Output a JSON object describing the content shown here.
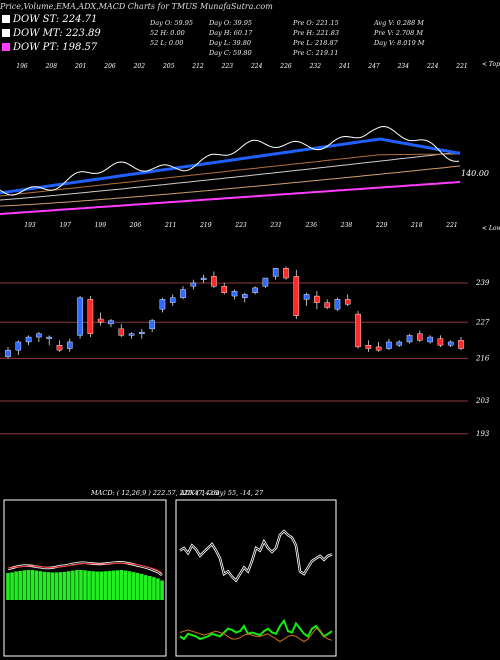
{
  "caption": "Price,Volume,EMA,ADX,MACD Charts for TMUS MunafaSutra.com",
  "legend": [
    {
      "label": "DOW ST: 224.71",
      "color": "#ffffff"
    },
    {
      "label": "DOW MT: 223.89",
      "color": "#ffffff"
    },
    {
      "label": "DOW PT: 198.57",
      "color": "#ff3cff"
    }
  ],
  "stats": {
    "col1": [
      "Day O: 59.95",
      "52 H: 0.00",
      "52 L: 0.00"
    ],
    "col2": [
      "Day O: 39.95",
      "Day H: 60.17",
      "Day L: 39.80",
      "Day C: 59.80"
    ],
    "col3": [
      "Pre O: 221.15",
      "Pre H: 221.83",
      "Pre L: 218.87",
      "Pre C: 219.11"
    ],
    "col4": [
      "Avg V: 0.288 M",
      "Pre V: 2.708 M",
      "Day V: 8.019 M"
    ]
  },
  "top_labels": [
    "196",
    "208",
    "201",
    "206",
    "202",
    "205",
    "212",
    "223",
    "224",
    "226",
    "232",
    "241",
    "247",
    "234",
    "224",
    "221"
  ],
  "mid_labels": [
    "193",
    "197",
    "199",
    "206",
    "211",
    "219",
    "223",
    "231",
    "236",
    "238",
    "229",
    "218",
    "221"
  ],
  "upper_right_label": "< Tops",
  "lower_right_label": "< Lows",
  "ema_label": "140.00",
  "macd_header": "MACD: ( 12,26,9 ) 222.57, 225.47, -2.9",
  "adx_header": "ADX ( 14 day) 55, -14, 27",
  "chart_data": {
    "type": "candlestick",
    "y_axis_ticks": [
      239,
      227,
      216,
      203,
      193
    ],
    "ylim": [
      185,
      246
    ],
    "candles": [
      {
        "o": 216.5,
        "h": 219.5,
        "l": 216.0,
        "c": 218.5
      },
      {
        "o": 218.5,
        "h": 221.5,
        "l": 217.0,
        "c": 221.0
      },
      {
        "o": 221.0,
        "h": 223.0,
        "l": 220.0,
        "c": 222.5
      },
      {
        "o": 222.5,
        "h": 224.0,
        "l": 221.0,
        "c": 223.5
      },
      {
        "o": 222.0,
        "h": 223.0,
        "l": 220.0,
        "c": 222.5
      },
      {
        "o": 220.0,
        "h": 221.5,
        "l": 218.0,
        "c": 218.5
      },
      {
        "o": 219.0,
        "h": 222.0,
        "l": 218.0,
        "c": 221.0
      },
      {
        "o": 223.0,
        "h": 235.0,
        "l": 222.0,
        "c": 234.5
      },
      {
        "o": 234.0,
        "h": 235.0,
        "l": 222.5,
        "c": 223.5
      },
      {
        "o": 228.0,
        "h": 230.0,
        "l": 226.0,
        "c": 227.0
      },
      {
        "o": 226.5,
        "h": 228.0,
        "l": 225.5,
        "c": 227.5
      },
      {
        "o": 225.0,
        "h": 226.5,
        "l": 222.5,
        "c": 223.0
      },
      {
        "o": 223.0,
        "h": 224.0,
        "l": 222.0,
        "c": 223.5
      },
      {
        "o": 223.5,
        "h": 225.0,
        "l": 222.0,
        "c": 224.0
      },
      {
        "o": 225.0,
        "h": 228.0,
        "l": 224.0,
        "c": 227.5
      },
      {
        "o": 231.0,
        "h": 234.5,
        "l": 230.0,
        "c": 234.0
      },
      {
        "o": 233.0,
        "h": 235.5,
        "l": 232.0,
        "c": 234.5
      },
      {
        "o": 234.5,
        "h": 238.0,
        "l": 234.0,
        "c": 237.0
      },
      {
        "o": 238.0,
        "h": 240.0,
        "l": 237.0,
        "c": 239.0
      },
      {
        "o": 240.0,
        "h": 241.5,
        "l": 239.0,
        "c": 240.5
      },
      {
        "o": 241.0,
        "h": 242.5,
        "l": 237.5,
        "c": 238.0
      },
      {
        "o": 238.0,
        "h": 239.0,
        "l": 235.5,
        "c": 236.0
      },
      {
        "o": 235.0,
        "h": 237.0,
        "l": 234.0,
        "c": 236.5
      },
      {
        "o": 234.5,
        "h": 236.0,
        "l": 233.0,
        "c": 235.5
      },
      {
        "o": 236.0,
        "h": 238.0,
        "l": 235.5,
        "c": 237.5
      },
      {
        "o": 238.0,
        "h": 240.5,
        "l": 237.5,
        "c": 240.5
      },
      {
        "o": 241.0,
        "h": 243.5,
        "l": 240.0,
        "c": 243.5
      },
      {
        "o": 243.5,
        "h": 244.0,
        "l": 240.0,
        "c": 240.5
      },
      {
        "o": 241.0,
        "h": 243.0,
        "l": 228.0,
        "c": 229.0
      },
      {
        "o": 234.0,
        "h": 236.0,
        "l": 232.0,
        "c": 235.5
      },
      {
        "o": 235.0,
        "h": 236.5,
        "l": 231.0,
        "c": 233.0
      },
      {
        "o": 233.0,
        "h": 234.0,
        "l": 231.0,
        "c": 231.5
      },
      {
        "o": 231.0,
        "h": 234.5,
        "l": 230.5,
        "c": 234.0
      },
      {
        "o": 234.0,
        "h": 235.5,
        "l": 232.0,
        "c": 232.5
      },
      {
        "o": 229.5,
        "h": 230.5,
        "l": 219.0,
        "c": 219.5
      },
      {
        "o": 220.0,
        "h": 221.5,
        "l": 218.0,
        "c": 219.0
      },
      {
        "o": 219.5,
        "h": 221.0,
        "l": 218.0,
        "c": 218.5
      },
      {
        "o": 219.0,
        "h": 222.0,
        "l": 218.5,
        "c": 221.0
      },
      {
        "o": 220.0,
        "h": 221.5,
        "l": 219.5,
        "c": 221.0
      },
      {
        "o": 221.0,
        "h": 223.5,
        "l": 220.5,
        "c": 223.0
      },
      {
        "o": 223.5,
        "h": 224.5,
        "l": 221.0,
        "c": 221.5
      },
      {
        "o": 221.0,
        "h": 223.0,
        "l": 220.5,
        "c": 222.5
      },
      {
        "o": 222.0,
        "h": 223.0,
        "l": 219.5,
        "c": 220.0
      },
      {
        "o": 220.0,
        "h": 221.5,
        "l": 219.5,
        "c": 221.0
      },
      {
        "o": 221.5,
        "h": 222.5,
        "l": 218.5,
        "c": 219.0
      }
    ],
    "macd_hist": [
      0.9,
      0.92,
      0.95,
      0.97,
      0.99,
      1.0,
      1.0,
      0.98,
      0.96,
      0.94,
      0.93,
      0.92,
      0.92,
      0.93,
      0.94,
      0.96,
      0.98,
      1.0,
      1.0,
      0.99,
      0.97,
      0.96,
      0.95,
      0.95,
      0.96,
      0.97,
      0.98,
      0.99,
      1.0,
      0.98,
      0.96,
      0.93,
      0.9,
      0.87,
      0.83,
      0.8,
      0.76,
      0.72,
      0.65
    ],
    "macd_line": [
      0.78,
      0.8,
      0.83,
      0.85,
      0.86,
      0.86,
      0.85,
      0.83,
      0.82,
      0.8,
      0.8,
      0.81,
      0.83,
      0.85,
      0.86,
      0.88,
      0.9,
      0.92,
      0.93,
      0.93,
      0.92,
      0.91,
      0.9,
      0.9,
      0.91,
      0.92,
      0.93,
      0.94,
      0.94,
      0.93,
      0.91,
      0.89,
      0.86,
      0.84,
      0.81,
      0.78,
      0.74,
      0.7,
      0.62
    ],
    "signal_line": [
      0.8,
      0.81,
      0.82,
      0.83,
      0.84,
      0.85,
      0.85,
      0.84,
      0.83,
      0.82,
      0.81,
      0.81,
      0.82,
      0.83,
      0.84,
      0.86,
      0.87,
      0.89,
      0.9,
      0.91,
      0.91,
      0.91,
      0.9,
      0.9,
      0.9,
      0.91,
      0.91,
      0.92,
      0.92,
      0.92,
      0.91,
      0.9,
      0.88,
      0.86,
      0.84,
      0.81,
      0.78,
      0.74,
      0.68
    ],
    "adx_plus": [
      0.78,
      0.8,
      0.76,
      0.82,
      0.79,
      0.74,
      0.77,
      0.8,
      0.83,
      0.78,
      0.72,
      0.6,
      0.62,
      0.58,
      0.55,
      0.6,
      0.65,
      0.62,
      0.7,
      0.8,
      0.78,
      0.85,
      0.8,
      0.77,
      0.8,
      0.9,
      0.93,
      0.9,
      0.88,
      0.82,
      0.62,
      0.6,
      0.65,
      0.7,
      0.72,
      0.74,
      0.71,
      0.74,
      0.75
    ],
    "adx_minus": [
      0.12,
      0.1,
      0.14,
      0.13,
      0.12,
      0.1,
      0.11,
      0.12,
      0.14,
      0.13,
      0.12,
      0.15,
      0.18,
      0.17,
      0.15,
      0.16,
      0.2,
      0.14,
      0.15,
      0.14,
      0.13,
      0.16,
      0.18,
      0.15,
      0.14,
      0.2,
      0.24,
      0.16,
      0.15,
      0.22,
      0.18,
      0.14,
      0.12,
      0.18,
      0.2,
      0.16,
      0.12,
      0.14,
      0.16
    ],
    "adx_line": [
      0.15,
      0.16,
      0.17,
      0.16,
      0.15,
      0.14,
      0.13,
      0.14,
      0.15,
      0.16,
      0.15,
      0.14,
      0.12,
      0.1,
      0.1,
      0.11,
      0.13,
      0.14,
      0.13,
      0.12,
      0.12,
      0.13,
      0.14,
      0.12,
      0.1,
      0.08,
      0.1,
      0.12,
      0.13,
      0.12,
      0.1,
      0.08,
      0.1,
      0.14,
      0.18,
      0.17,
      0.12,
      0.1,
      0.09
    ]
  }
}
